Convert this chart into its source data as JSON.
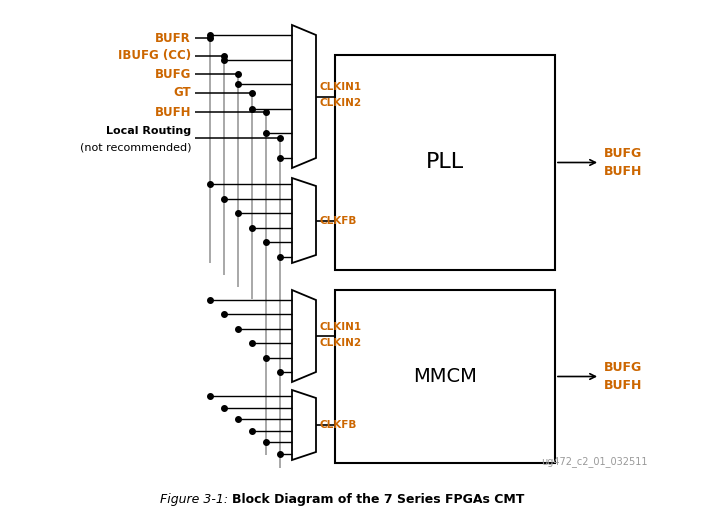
{
  "bg_color": "#ffffff",
  "line_color": "#000000",
  "gray_color": "#999999",
  "orange_color": "#CC6600",
  "input_labels": [
    "BUFR",
    "IBUFG (CC)",
    "BUFG",
    "GT",
    "BUFH",
    "Local Routing\n(not recommended)"
  ],
  "input_label_colors": [
    "#CC6600",
    "#CC6600",
    "#CC6600",
    "#CC6600",
    "#CC6600",
    "#000000"
  ],
  "pll_text": "PLL",
  "mmcm_text": "MMCM",
  "watermark_text": "ug472_c2_01_032511",
  "caption_italic": "Figure 3-1:",
  "caption_bold": "Block Diagram of the 7 Series FPGAs CMT",
  "figsize": [
    7.16,
    5.25
  ],
  "dpi": 100
}
